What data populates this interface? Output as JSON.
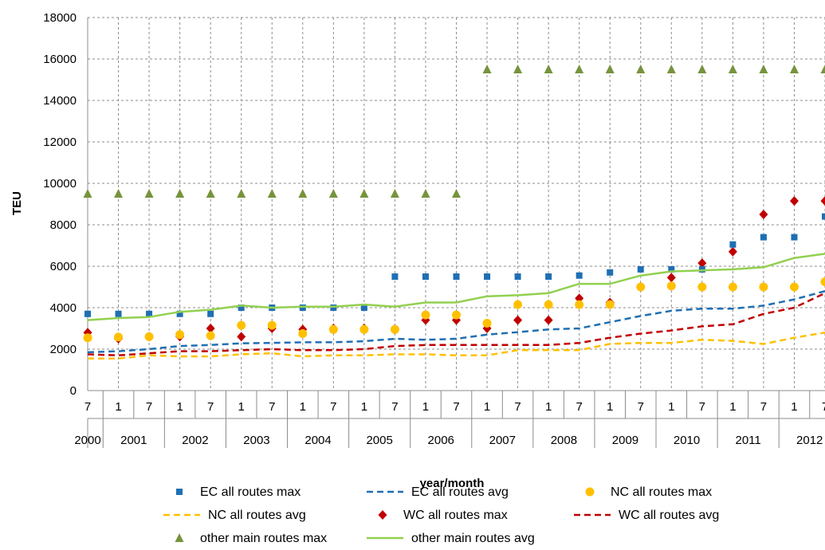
{
  "chart_data": {
    "type": "line",
    "title": "",
    "xlabel": "year/month",
    "ylabel": "TEU",
    "ylim": [
      0,
      18000
    ],
    "yticks": [
      0,
      2000,
      4000,
      6000,
      8000,
      10000,
      12000,
      14000,
      16000,
      18000
    ],
    "grid": true,
    "legend_position": "bottom",
    "months": [
      "7",
      "1",
      "7",
      "1",
      "7",
      "1",
      "7",
      "1",
      "7",
      "1",
      "7",
      "1",
      "7",
      "1",
      "7",
      "1",
      "7",
      "1",
      "7",
      "1",
      "7",
      "1",
      "7",
      "1",
      "7"
    ],
    "years": [
      "2000",
      "2001",
      "2002",
      "2003",
      "2004",
      "2005",
      "2006",
      "2007",
      "2008",
      "2009",
      "2010",
      "2011",
      "2012"
    ],
    "series": [
      {
        "name": "EC all routes max",
        "style": "marker",
        "marker": "square",
        "color": "#1f6fb4",
        "values": [
          3700,
          3700,
          3700,
          3700,
          3700,
          4000,
          4000,
          4000,
          4000,
          4000,
          5500,
          5500,
          5500,
          5500,
          5500,
          5500,
          5550,
          5700,
          5850,
          5850,
          5850,
          7050,
          7400,
          7400,
          8400
        ]
      },
      {
        "name": "EC all routes avg",
        "style": "dashed",
        "color": "#1f6fb4",
        "values": [
          1850,
          1900,
          2000,
          2150,
          2200,
          2280,
          2300,
          2330,
          2330,
          2380,
          2500,
          2450,
          2500,
          2700,
          2820,
          2950,
          3000,
          3300,
          3600,
          3850,
          3950,
          3950,
          4100,
          4400,
          4800
        ]
      },
      {
        "name": "NC all routes max",
        "style": "marker",
        "marker": "circle",
        "color": "#ffc000",
        "values": [
          2550,
          2580,
          2600,
          2700,
          2650,
          3150,
          3150,
          2750,
          2950,
          2950,
          2950,
          3650,
          3650,
          3250,
          4150,
          4150,
          4150,
          4150,
          5000,
          5050,
          5000,
          5000,
          5000,
          5000,
          5250
        ]
      },
      {
        "name": "NC all routes avg",
        "style": "dashed",
        "color": "#ffc000",
        "values": [
          1550,
          1550,
          1700,
          1650,
          1650,
          1750,
          1800,
          1650,
          1700,
          1700,
          1750,
          1750,
          1700,
          1700,
          1950,
          1950,
          1950,
          2250,
          2300,
          2300,
          2450,
          2400,
          2250,
          2550,
          2800
        ]
      },
      {
        "name": "WC all routes max",
        "style": "marker",
        "marker": "diamond",
        "color": "#c00000",
        "values": [
          2800,
          2500,
          2600,
          2600,
          3000,
          2600,
          3000,
          2950,
          3000,
          3000,
          2950,
          3400,
          3400,
          3000,
          3400,
          3400,
          4450,
          4250,
          5000,
          5450,
          6150,
          6700,
          8500,
          9150,
          9150
        ]
      },
      {
        "name": "WC all routes avg",
        "style": "dashed",
        "color": "#c00000",
        "values": [
          1750,
          1700,
          1800,
          1900,
          1900,
          1950,
          2000,
          1950,
          1950,
          2000,
          2150,
          2200,
          2200,
          2200,
          2200,
          2200,
          2300,
          2550,
          2750,
          2900,
          3100,
          3200,
          3700,
          4000,
          4700
        ]
      },
      {
        "name": "other main routes max",
        "style": "marker",
        "marker": "triangle",
        "color": "#77933c",
        "values": [
          9500,
          9500,
          9500,
          9500,
          9500,
          9500,
          9500,
          9500,
          9500,
          9500,
          9500,
          9500,
          9500,
          15500,
          15500,
          15500,
          15500,
          15500,
          15500,
          15500,
          15500,
          15500,
          15500,
          15500,
          15500
        ]
      },
      {
        "name": "other main routes avg",
        "style": "solid",
        "color": "#92d050",
        "values": [
          3400,
          3500,
          3550,
          3800,
          3900,
          4100,
          4000,
          4050,
          4050,
          4150,
          4050,
          4250,
          4250,
          4550,
          4600,
          4700,
          5150,
          5150,
          5550,
          5750,
          5800,
          5850,
          5950,
          6400,
          6600
        ]
      }
    ]
  }
}
